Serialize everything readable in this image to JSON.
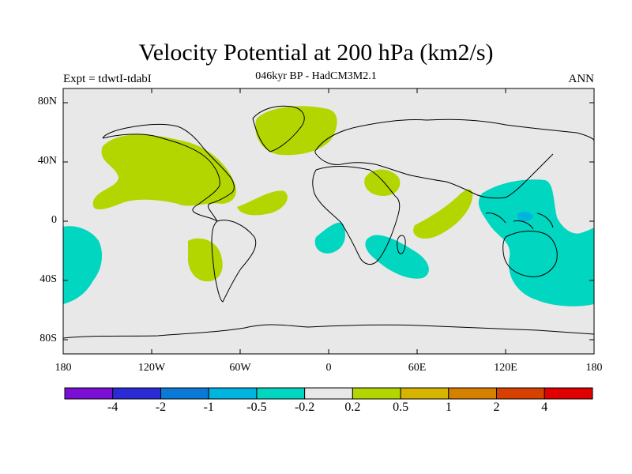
{
  "title": "Velocity Potential at 200 hPa (km2/s)",
  "subtitle": "046kyr BP - HadCM3M2.1",
  "left_label": "Expt = tdwtI-tdabI",
  "right_label": "ANN",
  "map": {
    "background_color": "#e8e8e8",
    "lat_ticks": [
      "80N",
      "40N",
      "0",
      "40S",
      "80S"
    ],
    "lon_ticks": [
      "180",
      "120W",
      "60W",
      "0",
      "60E",
      "120E",
      "180"
    ]
  },
  "colorbar": {
    "colors": [
      "#7b0fd6",
      "#2b2bd6",
      "#0a7ad6",
      "#00b4e0",
      "#00d6c0",
      "#e8e8e8",
      "#b4d600",
      "#d6b400",
      "#d68000",
      "#d64000",
      "#e00000"
    ],
    "labels": [
      "-4",
      "-2",
      "-1",
      "-0.5",
      "-0.2",
      "0.2",
      "0.5",
      "1",
      "2",
      "4"
    ]
  },
  "colors": {
    "positive_anomaly": "#b4d600",
    "negative_anomaly": "#00d6c0",
    "strong_negative": "#00b4e0",
    "coastline": "#000000"
  }
}
